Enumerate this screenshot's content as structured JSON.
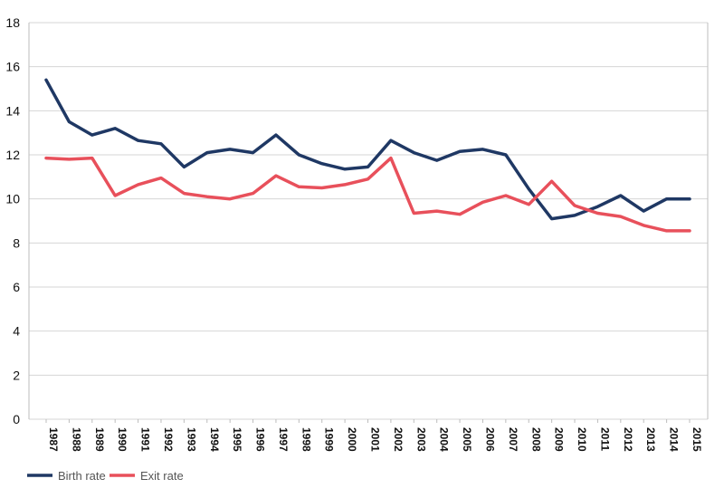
{
  "chart_data": {
    "type": "line",
    "categories": [
      "1987",
      "1988",
      "1989",
      "1990",
      "1991",
      "1992",
      "1993",
      "1994",
      "1995",
      "1996",
      "1997",
      "1998",
      "1999",
      "2000",
      "2001",
      "2002",
      "2003",
      "2004",
      "2005",
      "2006",
      "2007",
      "2008",
      "2009",
      "2010",
      "2011",
      "2012",
      "2013",
      "2014",
      "2015"
    ],
    "series": [
      {
        "name": "Birth rate",
        "color": "#1f3864",
        "values": [
          15.4,
          13.5,
          12.9,
          13.2,
          12.65,
          12.5,
          11.45,
          12.1,
          12.25,
          12.1,
          12.9,
          12.0,
          11.6,
          11.35,
          11.45,
          12.65,
          12.1,
          11.75,
          12.15,
          12.25,
          12.0,
          10.45,
          9.1,
          9.25,
          9.65,
          10.15,
          9.45,
          10.0,
          10.0
        ]
      },
      {
        "name": "Exit rate",
        "color": "#e8505b",
        "values": [
          11.85,
          11.8,
          11.85,
          10.15,
          10.65,
          10.95,
          10.25,
          10.1,
          10.0,
          10.25,
          11.05,
          10.55,
          10.5,
          10.65,
          10.9,
          11.85,
          9.35,
          9.45,
          9.3,
          9.85,
          10.15,
          9.75,
          10.8,
          9.7,
          9.35,
          9.2,
          8.8,
          8.55,
          8.55
        ]
      }
    ],
    "yticks": [
      0,
      2,
      4,
      6,
      8,
      10,
      12,
      14,
      16,
      18
    ],
    "ylim": [
      0,
      18
    ],
    "grid": true,
    "legend": "bottom-left"
  }
}
